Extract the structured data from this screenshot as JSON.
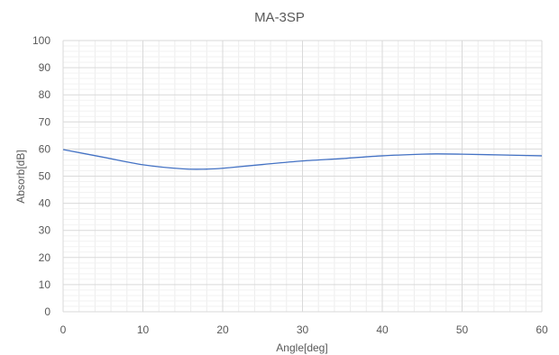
{
  "chart_data": {
    "type": "line",
    "title": "MA-3SP",
    "xlabel": "Angle[deg]",
    "ylabel": "Absorb[dB]",
    "xlim": [
      0,
      60
    ],
    "ylim": [
      0,
      100
    ],
    "x_ticks": [
      0,
      10,
      20,
      30,
      40,
      50,
      60
    ],
    "y_ticks": [
      0,
      10,
      20,
      30,
      40,
      50,
      60,
      70,
      80,
      90,
      100
    ],
    "x_tick_labels": [
      "0",
      "10",
      "20",
      "30",
      "40",
      "50",
      "60"
    ],
    "y_tick_labels": [
      "0",
      "10",
      "20",
      "30",
      "40",
      "50",
      "60",
      "70",
      "80",
      "90",
      "100"
    ],
    "grid": true,
    "minor_grid": true,
    "legend": "none",
    "series": [
      {
        "color": "#4472C4",
        "x": [
          0,
          5,
          10,
          15,
          18,
          20,
          25,
          30,
          35,
          40,
          45,
          47,
          50,
          55,
          60
        ],
        "y": [
          59.8,
          57,
          54.2,
          52.7,
          52.6,
          52.9,
          54.3,
          55.6,
          56.5,
          57.5,
          58.1,
          58.2,
          58.1,
          57.8,
          57.5
        ]
      }
    ]
  }
}
